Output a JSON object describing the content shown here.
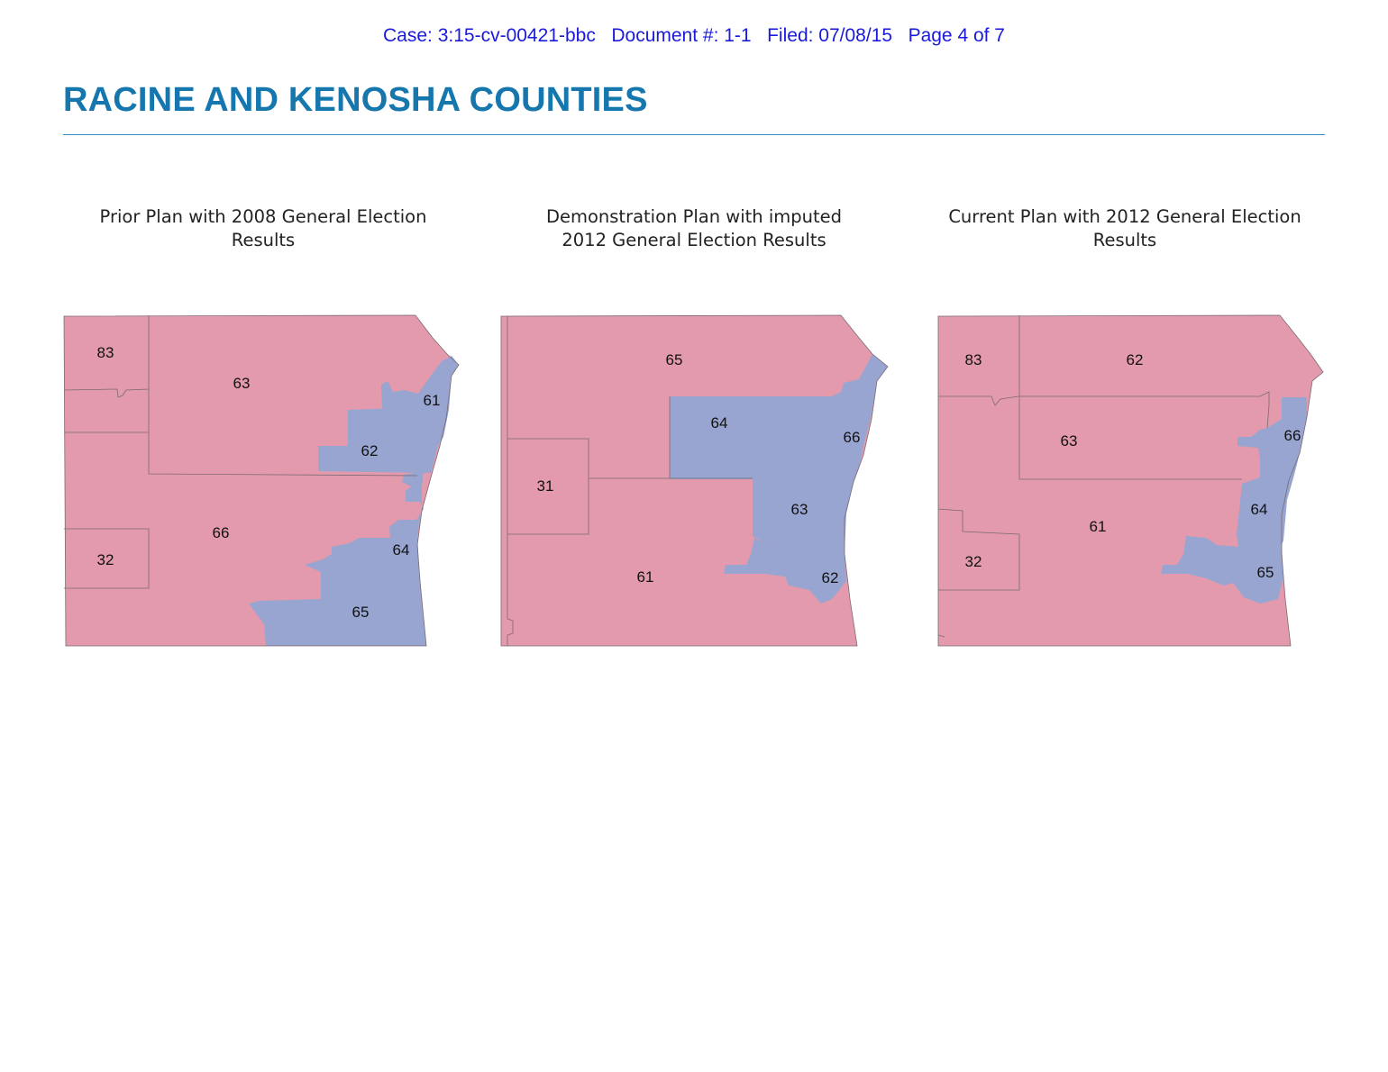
{
  "header": {
    "case": "Case: 3:15-cv-00421-bbc",
    "document": "Document #: 1-1",
    "filed": "Filed: 07/08/15",
    "page": "Page 4 of 7"
  },
  "title": "RACINE AND KENOSHA COUNTIES",
  "colors": {
    "republican": "#e39aad",
    "democrat": "#98a5d0",
    "heading": "#1577ad",
    "header_text": "#1a1adc"
  },
  "panels": [
    {
      "title_line1": "Prior Plan with 2008 General Election",
      "title_line2": "Results",
      "districts": [
        {
          "label": "83",
          "party": "republican"
        },
        {
          "label": "63",
          "party": "republican"
        },
        {
          "label": "61",
          "party": "democrat"
        },
        {
          "label": "62",
          "party": "democrat"
        },
        {
          "label": "66",
          "party": "republican"
        },
        {
          "label": "64",
          "party": "democrat"
        },
        {
          "label": "32",
          "party": "republican"
        },
        {
          "label": "65",
          "party": "democrat"
        }
      ]
    },
    {
      "title_line1": "Demonstration Plan with imputed",
      "title_line2": "2012 General Election Results",
      "districts": [
        {
          "label": "65",
          "party": "republican"
        },
        {
          "label": "64",
          "party": "democrat"
        },
        {
          "label": "66",
          "party": "democrat"
        },
        {
          "label": "31",
          "party": "republican"
        },
        {
          "label": "63",
          "party": "democrat"
        },
        {
          "label": "61",
          "party": "republican"
        },
        {
          "label": "62",
          "party": "democrat"
        }
      ]
    },
    {
      "title_line1": "Current Plan with 2012 General Election",
      "title_line2": "Results",
      "districts": [
        {
          "label": "83",
          "party": "republican"
        },
        {
          "label": "62",
          "party": "republican"
        },
        {
          "label": "63",
          "party": "republican"
        },
        {
          "label": "66",
          "party": "democrat"
        },
        {
          "label": "64",
          "party": "democrat"
        },
        {
          "label": "61",
          "party": "republican"
        },
        {
          "label": "32",
          "party": "republican"
        },
        {
          "label": "65",
          "party": "democrat"
        }
      ]
    }
  ]
}
